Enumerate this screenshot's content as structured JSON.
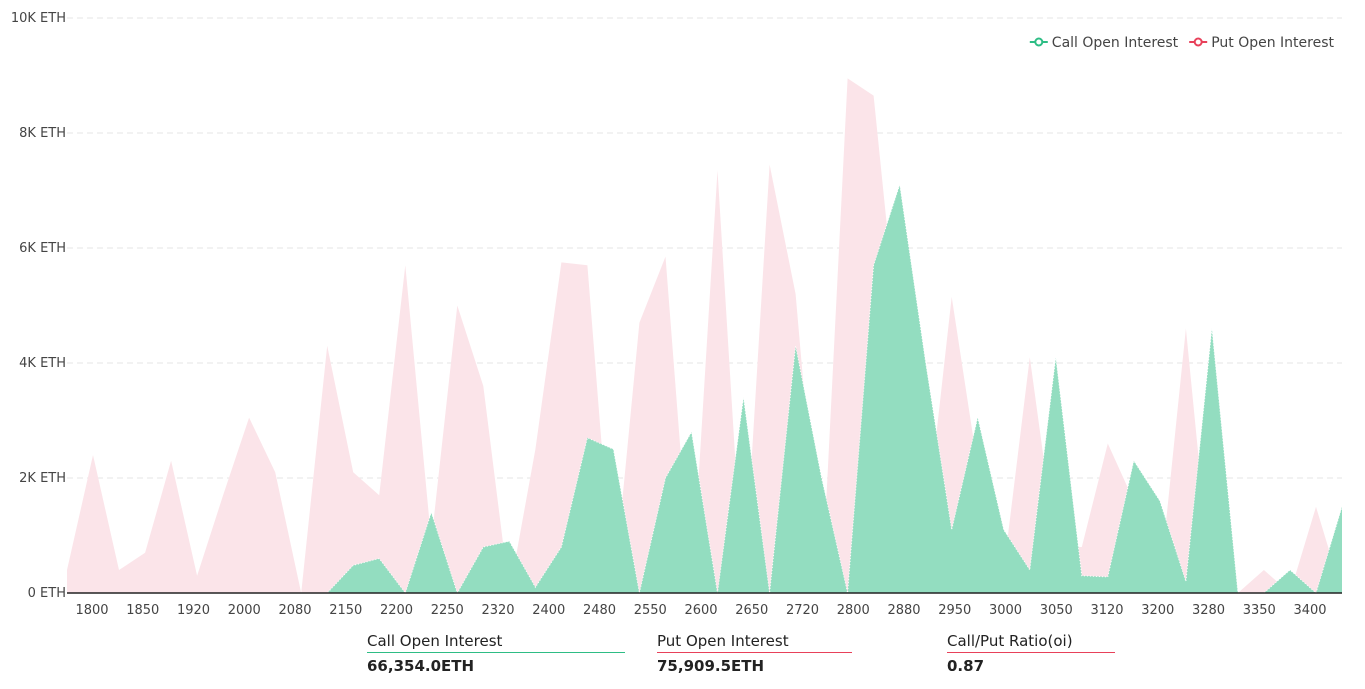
{
  "chart_data": {
    "type": "area",
    "x": [
      "1800",
      "1825",
      "1850",
      "1875",
      "1900",
      "1920",
      "1950",
      "2000",
      "2050",
      "2080",
      "2100",
      "2150",
      "2200",
      "2250",
      "2280",
      "2320",
      "2350",
      "2400",
      "2450",
      "2480",
      "2500",
      "2550",
      "2575",
      "2600",
      "2625",
      "2650",
      "2675",
      "2700",
      "2720",
      "2750",
      "2800",
      "2850",
      "2880",
      "2900",
      "2950",
      "2975",
      "3000",
      "3025",
      "3050",
      "3075",
      "3100",
      "3120",
      "3150",
      "3200",
      "3230",
      "3280",
      "3320",
      "3350",
      "3400",
      "3450"
    ],
    "tick_labels": [
      "1800",
      "1850",
      "1920",
      "2000",
      "2080",
      "2150",
      "2200",
      "2250",
      "2320",
      "2400",
      "2480",
      "2550",
      "2600",
      "2650",
      "2720",
      "2800",
      "2880",
      "2950",
      "3000",
      "3050",
      "3120",
      "3200",
      "3280",
      "3350",
      "3400"
    ],
    "series": [
      {
        "name": "Call Open Interest",
        "color": "#2ebd85",
        "fill": "#93ddc0",
        "values": [
          0,
          0,
          0,
          0,
          0,
          0,
          0,
          0,
          0,
          0,
          0,
          480,
          600,
          0,
          1400,
          0,
          800,
          900,
          100,
          800,
          2700,
          2500,
          0,
          2000,
          2800,
          0,
          3400,
          0,
          4300,
          2000,
          0,
          5700,
          7100,
          4000,
          1100,
          3050,
          1100,
          400,
          4100,
          300,
          280,
          2300,
          1600,
          200,
          4600,
          0,
          0,
          400,
          0,
          1500
        ]
      },
      {
        "name": "Put  Open Interest",
        "color": "#e8415a",
        "fill": "#fbe4e9",
        "values": [
          400,
          2400,
          400,
          700,
          2300,
          300,
          1700,
          3050,
          2100,
          0,
          4300,
          2100,
          1700,
          5700,
          900,
          5000,
          3600,
          0,
          2500,
          5750,
          5700,
          0,
          4700,
          5850,
          0,
          7350,
          0,
          7450,
          5200,
          0,
          8950,
          8650,
          4200,
          1100,
          5150,
          2200,
          400,
          4100,
          800,
          800,
          2600,
          1600,
          200,
          4600,
          0,
          0,
          400,
          0,
          1500,
          0
        ]
      }
    ],
    "ylim": [
      0,
      10000
    ],
    "y_ticks": [
      0,
      2000,
      4000,
      6000,
      8000,
      10000
    ],
    "y_tick_labels": [
      "0 ETH",
      "2K ETH",
      "4K ETH",
      "6K ETH",
      "8K ETH",
      "10K ETH"
    ],
    "grid": true,
    "legend_position": "top-right"
  },
  "stats": {
    "call": {
      "label": "Call Open Interest",
      "value": "66,354.0ETH",
      "color": "#2ebd85"
    },
    "put": {
      "label": "Put Open Interest",
      "value": "75,909.5ETH",
      "color": "#e8415a"
    },
    "ratio": {
      "label": "Call/Put Ratio(oi)",
      "value": "0.87",
      "color": "#e8415a"
    }
  }
}
